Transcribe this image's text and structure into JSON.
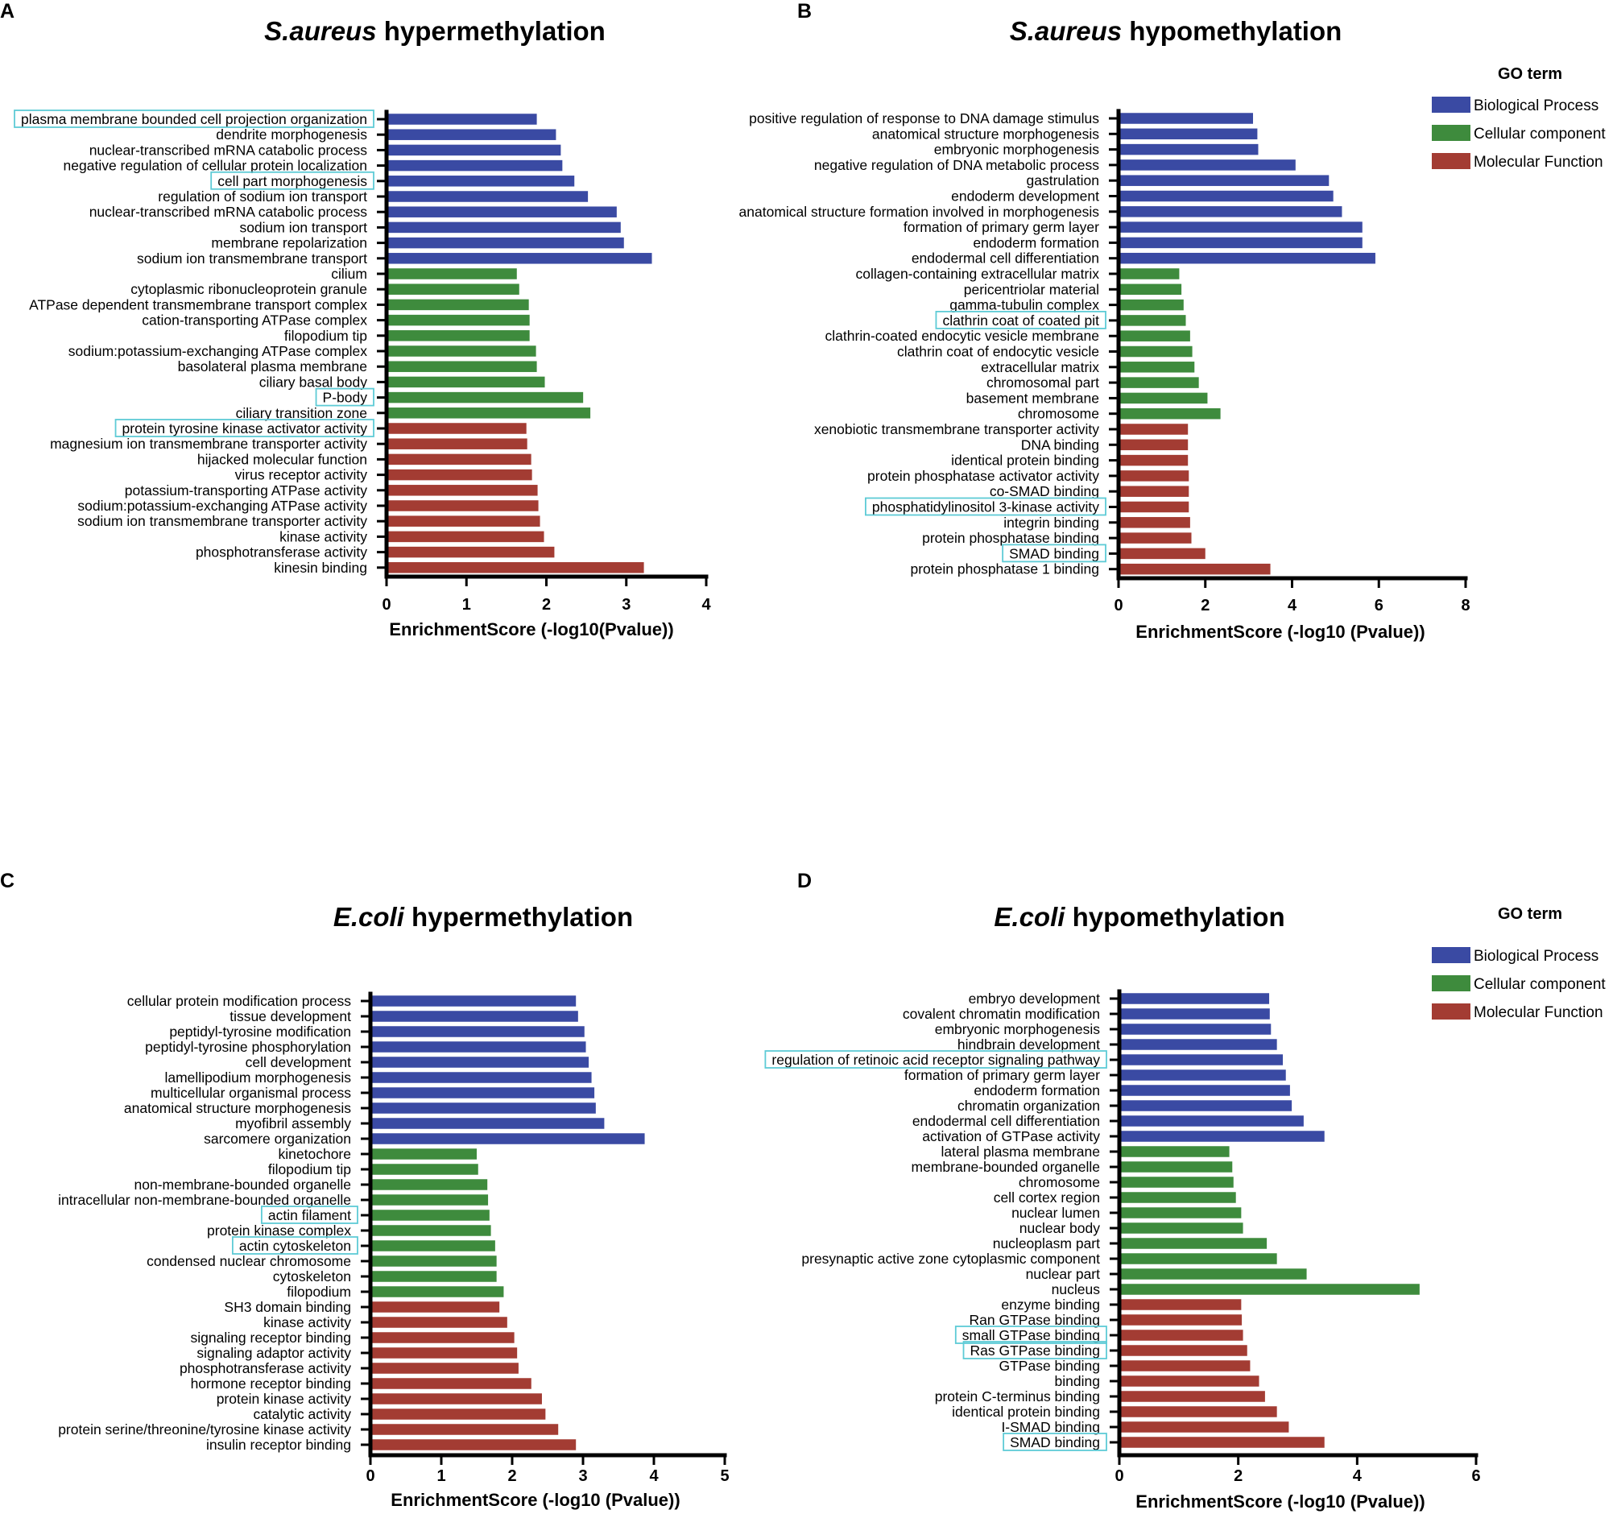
{
  "colors": {
    "bp": "#3a4aa3",
    "cc": "#3e8b3d",
    "mf": "#a33c33",
    "highlight": "#5ecbd6",
    "axis": "#000000"
  },
  "legend": {
    "title": "GO term",
    "entries": [
      "Biological Process",
      "Cellular component",
      "Molecular Function"
    ]
  },
  "chart_data": [
    {
      "panel": "A",
      "type": "bar",
      "orientation": "horizontal",
      "title_italic": "S.aureus",
      "title_rest": "hypermethylation",
      "xlabel": "EnrichmentScore (-log10(Pvalue))",
      "xlim": [
        0,
        4
      ],
      "xticks": [
        0,
        1,
        2,
        3,
        4
      ],
      "legend": false,
      "categories": [
        {
          "term": "plasma membrane bounded cell projection organization",
          "value": 1.88,
          "group": "bp",
          "highlight": true
        },
        {
          "term": "dendrite morphogenesis",
          "value": 2.12,
          "group": "bp"
        },
        {
          "term": "nuclear-transcribed mRNA catabolic process",
          "value": 2.18,
          "group": "bp"
        },
        {
          "term": "negative regulation of cellular protein localization",
          "value": 2.2,
          "group": "bp"
        },
        {
          "term": "cell part morphogenesis",
          "value": 2.35,
          "group": "bp",
          "highlight": true
        },
        {
          "term": "regulation of sodium ion transport",
          "value": 2.52,
          "group": "bp"
        },
        {
          "term": "nuclear-transcribed mRNA catabolic process",
          "value": 2.88,
          "group": "bp"
        },
        {
          "term": "sodium ion transport",
          "value": 2.93,
          "group": "bp"
        },
        {
          "term": "membrane repolarization",
          "value": 2.97,
          "group": "bp"
        },
        {
          "term": "sodium ion transmembrane transport",
          "value": 3.32,
          "group": "bp"
        },
        {
          "term": "cilium",
          "value": 1.63,
          "group": "cc"
        },
        {
          "term": "cytoplasmic ribonucleoprotein granule",
          "value": 1.66,
          "group": "cc"
        },
        {
          "term": "ATPase dependent transmembrane transport complex",
          "value": 1.78,
          "group": "cc"
        },
        {
          "term": "cation-transporting ATPase complex",
          "value": 1.79,
          "group": "cc"
        },
        {
          "term": "filopodium tip",
          "value": 1.79,
          "group": "cc"
        },
        {
          "term": "sodium:potassium-exchanging ATPase complex",
          "value": 1.87,
          "group": "cc"
        },
        {
          "term": "basolateral plasma membrane",
          "value": 1.88,
          "group": "cc"
        },
        {
          "term": "ciliary basal body",
          "value": 1.98,
          "group": "cc"
        },
        {
          "term": "P-body",
          "value": 2.46,
          "group": "cc",
          "highlight": true
        },
        {
          "term": "ciliary transition zone",
          "value": 2.55,
          "group": "cc"
        },
        {
          "term": "protein tyrosine kinase activator activity",
          "value": 1.75,
          "group": "mf",
          "highlight": true
        },
        {
          "term": "magnesium ion transmembrane transporter activity",
          "value": 1.76,
          "group": "mf"
        },
        {
          "term": "hijacked molecular function",
          "value": 1.81,
          "group": "mf"
        },
        {
          "term": "virus receptor activity",
          "value": 1.82,
          "group": "mf"
        },
        {
          "term": "potassium-transporting ATPase activity",
          "value": 1.89,
          "group": "mf"
        },
        {
          "term": "sodium:potassium-exchanging ATPase activity",
          "value": 1.9,
          "group": "mf"
        },
        {
          "term": "sodium ion transmembrane transporter activity",
          "value": 1.92,
          "group": "mf"
        },
        {
          "term": "kinase activity",
          "value": 1.97,
          "group": "mf"
        },
        {
          "term": "phosphotransferase activity",
          "value": 2.1,
          "group": "mf"
        },
        {
          "term": "kinesin binding",
          "value": 3.22,
          "group": "mf"
        }
      ]
    },
    {
      "panel": "B",
      "type": "bar",
      "orientation": "horizontal",
      "title_italic": "S.aureus",
      "title_rest": "hypomethylation",
      "xlabel": "EnrichmentScore (-log10 (Pvalue))",
      "xlim": [
        0,
        8
      ],
      "xticks": [
        0,
        2,
        4,
        6,
        8
      ],
      "legend": true,
      "categories": [
        {
          "term": "positive regulation of response to DNA damage stimulus",
          "value": 3.1,
          "group": "bp"
        },
        {
          "term": "anatomical structure morphogenesis",
          "value": 3.2,
          "group": "bp"
        },
        {
          "term": "embryonic morphogenesis",
          "value": 3.22,
          "group": "bp"
        },
        {
          "term": "negative regulation of DNA metabolic process",
          "value": 4.08,
          "group": "bp"
        },
        {
          "term": "gastrulation",
          "value": 4.85,
          "group": "bp"
        },
        {
          "term": "endoderm development",
          "value": 4.95,
          "group": "bp"
        },
        {
          "term": "anatomical structure formation involved in morphogenesis",
          "value": 5.15,
          "group": "bp"
        },
        {
          "term": "formation of primary germ layer",
          "value": 5.62,
          "group": "bp"
        },
        {
          "term": "endoderm formation",
          "value": 5.62,
          "group": "bp"
        },
        {
          "term": "endodermal cell differentiation",
          "value": 5.92,
          "group": "bp"
        },
        {
          "term": "collagen-containing extracellular matrix",
          "value": 1.4,
          "group": "cc"
        },
        {
          "term": "pericentriolar material",
          "value": 1.45,
          "group": "cc"
        },
        {
          "term": "gamma-tubulin complex",
          "value": 1.5,
          "group": "cc"
        },
        {
          "term": "clathrin coat of coated pit",
          "value": 1.55,
          "group": "cc",
          "highlight": true
        },
        {
          "term": "clathrin-coated endocytic vesicle membrane",
          "value": 1.65,
          "group": "cc"
        },
        {
          "term": "clathrin coat of endocytic vesicle",
          "value": 1.7,
          "group": "cc"
        },
        {
          "term": "extracellular matrix",
          "value": 1.75,
          "group": "cc"
        },
        {
          "term": "chromosomal part",
          "value": 1.85,
          "group": "cc"
        },
        {
          "term": "basement membrane",
          "value": 2.05,
          "group": "cc"
        },
        {
          "term": "chromosome",
          "value": 2.35,
          "group": "cc"
        },
        {
          "term": "xenobiotic transmembrane transporter activity",
          "value": 1.6,
          "group": "mf"
        },
        {
          "term": "DNA binding",
          "value": 1.6,
          "group": "mf"
        },
        {
          "term": "identical protein binding",
          "value": 1.6,
          "group": "mf"
        },
        {
          "term": "protein phosphatase activator activity",
          "value": 1.62,
          "group": "mf"
        },
        {
          "term": "co-SMAD binding",
          "value": 1.62,
          "group": "mf"
        },
        {
          "term": "phosphatidylinositol 3-kinase activity",
          "value": 1.62,
          "group": "mf",
          "highlight": true
        },
        {
          "term": "integrin binding",
          "value": 1.65,
          "group": "mf"
        },
        {
          "term": "protein phosphatase binding",
          "value": 1.68,
          "group": "mf"
        },
        {
          "term": "SMAD binding",
          "value": 2.0,
          "group": "mf",
          "highlight": true
        },
        {
          "term": "protein phosphatase 1 binding",
          "value": 3.5,
          "group": "mf"
        }
      ]
    },
    {
      "panel": "C",
      "type": "bar",
      "orientation": "horizontal",
      "title_italic": "E.coli",
      "title_rest": "hypermethylation",
      "xlabel": "EnrichmentScore (-log10 (Pvalue))",
      "xlim": [
        0,
        5
      ],
      "xticks": [
        0,
        1,
        2,
        3,
        4,
        5
      ],
      "legend": false,
      "categories": [
        {
          "term": "cellular protein modification process",
          "value": 2.9,
          "group": "bp"
        },
        {
          "term": "tissue development",
          "value": 2.93,
          "group": "bp"
        },
        {
          "term": "peptidyl-tyrosine modification",
          "value": 3.02,
          "group": "bp"
        },
        {
          "term": "peptidyl-tyrosine phosphorylation",
          "value": 3.04,
          "group": "bp"
        },
        {
          "term": "cell development",
          "value": 3.08,
          "group": "bp"
        },
        {
          "term": "lamellipodium morphogenesis",
          "value": 3.12,
          "group": "bp"
        },
        {
          "term": "multicellular organismal process",
          "value": 3.16,
          "group": "bp"
        },
        {
          "term": "anatomical structure morphogenesis",
          "value": 3.18,
          "group": "bp"
        },
        {
          "term": "myofibril assembly",
          "value": 3.3,
          "group": "bp"
        },
        {
          "term": "sarcomere organization",
          "value": 3.87,
          "group": "bp"
        },
        {
          "term": "kinetochore",
          "value": 1.5,
          "group": "cc"
        },
        {
          "term": "filopodium tip",
          "value": 1.52,
          "group": "cc"
        },
        {
          "term": "non-membrane-bounded organelle",
          "value": 1.65,
          "group": "cc"
        },
        {
          "term": "intracellular non-membrane-bounded organelle",
          "value": 1.66,
          "group": "cc"
        },
        {
          "term": "actin filament",
          "value": 1.68,
          "group": "cc",
          "highlight": true
        },
        {
          "term": "protein kinase complex",
          "value": 1.7,
          "group": "cc"
        },
        {
          "term": "actin cytoskeleton",
          "value": 1.76,
          "group": "cc",
          "highlight": true
        },
        {
          "term": "condensed nuclear chromosome",
          "value": 1.78,
          "group": "cc"
        },
        {
          "term": "cytoskeleton",
          "value": 1.78,
          "group": "cc"
        },
        {
          "term": "filopodium",
          "value": 1.88,
          "group": "cc"
        },
        {
          "term": "SH3 domain binding",
          "value": 1.82,
          "group": "mf"
        },
        {
          "term": "kinase activity",
          "value": 1.93,
          "group": "mf"
        },
        {
          "term": "signaling receptor binding",
          "value": 2.03,
          "group": "mf"
        },
        {
          "term": "signaling adaptor activity",
          "value": 2.07,
          "group": "mf"
        },
        {
          "term": "phosphotransferase activity",
          "value": 2.09,
          "group": "mf"
        },
        {
          "term": "hormone receptor binding",
          "value": 2.27,
          "group": "mf"
        },
        {
          "term": "protein kinase activity",
          "value": 2.42,
          "group": "mf"
        },
        {
          "term": "catalytic activity",
          "value": 2.47,
          "group": "mf"
        },
        {
          "term": "protein serine/threonine/tyrosine kinase activity",
          "value": 2.65,
          "group": "mf"
        },
        {
          "term": "insulin receptor binding",
          "value": 2.9,
          "group": "mf"
        }
      ]
    },
    {
      "panel": "D",
      "type": "bar",
      "orientation": "horizontal",
      "title_italic": "E.coli",
      "title_rest": "hypomethylation",
      "xlabel": "EnrichmentScore (-log10 (Pvalue))",
      "xlim": [
        0,
        6
      ],
      "xticks": [
        0,
        2,
        4,
        6
      ],
      "legend": true,
      "categories": [
        {
          "term": "embryo development",
          "value": 2.52,
          "group": "bp"
        },
        {
          "term": "covalent chromatin modification",
          "value": 2.53,
          "group": "bp"
        },
        {
          "term": "embryonic morphogenesis",
          "value": 2.55,
          "group": "bp"
        },
        {
          "term": "hindbrain development",
          "value": 2.65,
          "group": "bp"
        },
        {
          "term": "regulation of retinoic acid receptor signaling pathway",
          "value": 2.75,
          "group": "bp",
          "highlight": true
        },
        {
          "term": "formation of primary germ layer",
          "value": 2.8,
          "group": "bp"
        },
        {
          "term": "endoderm formation",
          "value": 2.87,
          "group": "bp"
        },
        {
          "term": "chromatin organization",
          "value": 2.9,
          "group": "bp"
        },
        {
          "term": "endodermal cell differentiation",
          "value": 3.1,
          "group": "bp"
        },
        {
          "term": "activation of GTPase activity",
          "value": 3.45,
          "group": "bp"
        },
        {
          "term": "lateral plasma membrane",
          "value": 1.85,
          "group": "cc"
        },
        {
          "term": "membrane-bounded organelle",
          "value": 1.9,
          "group": "cc"
        },
        {
          "term": "chromosome",
          "value": 1.92,
          "group": "cc"
        },
        {
          "term": "cell cortex region",
          "value": 1.96,
          "group": "cc"
        },
        {
          "term": "nuclear lumen",
          "value": 2.05,
          "group": "cc"
        },
        {
          "term": "nuclear body",
          "value": 2.08,
          "group": "cc"
        },
        {
          "term": "nucleoplasm part",
          "value": 2.48,
          "group": "cc"
        },
        {
          "term": "presynaptic active zone cytoplasmic component",
          "value": 2.65,
          "group": "cc"
        },
        {
          "term": "nuclear part",
          "value": 3.15,
          "group": "cc"
        },
        {
          "term": "nucleus",
          "value": 5.05,
          "group": "cc"
        },
        {
          "term": "enzyme binding",
          "value": 2.05,
          "group": "mf"
        },
        {
          "term": "Ran GTPase binding",
          "value": 2.06,
          "group": "mf"
        },
        {
          "term": "small GTPase binding",
          "value": 2.08,
          "group": "mf",
          "highlight": true
        },
        {
          "term": "Ras GTPase binding",
          "value": 2.15,
          "group": "mf",
          "highlight": true
        },
        {
          "term": "GTPase binding",
          "value": 2.2,
          "group": "mf"
        },
        {
          "term": "binding",
          "value": 2.35,
          "group": "mf"
        },
        {
          "term": "protein C-terminus binding",
          "value": 2.45,
          "group": "mf"
        },
        {
          "term": "identical protein binding",
          "value": 2.65,
          "group": "mf"
        },
        {
          "term": "I-SMAD binding",
          "value": 2.85,
          "group": "mf"
        },
        {
          "term": "SMAD binding",
          "value": 3.45,
          "group": "mf",
          "highlight": true
        }
      ]
    }
  ]
}
